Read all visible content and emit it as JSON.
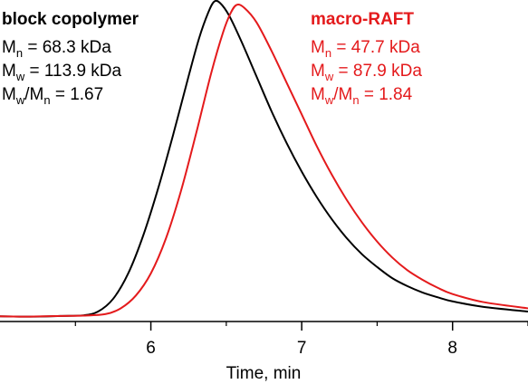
{
  "chart_data": {
    "type": "line",
    "title": "",
    "xlabel": "Time, min",
    "ylabel": "",
    "xlim": [
      5.0,
      8.5
    ],
    "ylim": [
      0,
      1
    ],
    "x_ticks": [
      6,
      7,
      8
    ],
    "grid": false,
    "series": [
      {
        "name": "block copolymer",
        "color": "#000000",
        "points": [
          [
            5.0,
            0.005
          ],
          [
            5.2,
            0.004
          ],
          [
            5.4,
            0.006
          ],
          [
            5.55,
            0.008
          ],
          [
            5.65,
            0.02
          ],
          [
            5.75,
            0.06
          ],
          [
            5.85,
            0.14
          ],
          [
            5.95,
            0.26
          ],
          [
            6.05,
            0.41
          ],
          [
            6.15,
            0.58
          ],
          [
            6.25,
            0.76
          ],
          [
            6.32,
            0.88
          ],
          [
            6.38,
            0.96
          ],
          [
            6.42,
            0.995
          ],
          [
            6.46,
            0.99
          ],
          [
            6.52,
            0.95
          ],
          [
            6.6,
            0.87
          ],
          [
            6.7,
            0.76
          ],
          [
            6.8,
            0.65
          ],
          [
            6.9,
            0.55
          ],
          [
            7.0,
            0.46
          ],
          [
            7.1,
            0.38
          ],
          [
            7.2,
            0.31
          ],
          [
            7.3,
            0.25
          ],
          [
            7.4,
            0.2
          ],
          [
            7.5,
            0.16
          ],
          [
            7.6,
            0.125
          ],
          [
            7.7,
            0.1
          ],
          [
            7.8,
            0.08
          ],
          [
            7.9,
            0.065
          ],
          [
            8.0,
            0.052
          ],
          [
            8.2,
            0.035
          ],
          [
            8.5,
            0.02
          ]
        ]
      },
      {
        "name": "macro-RAFT",
        "color": "#e41a1c",
        "points": [
          [
            5.0,
            0.005
          ],
          [
            5.2,
            0.004
          ],
          [
            5.4,
            0.006
          ],
          [
            5.55,
            0.007
          ],
          [
            5.7,
            0.012
          ],
          [
            5.8,
            0.03
          ],
          [
            5.9,
            0.07
          ],
          [
            6.0,
            0.14
          ],
          [
            6.1,
            0.25
          ],
          [
            6.2,
            0.4
          ],
          [
            6.3,
            0.58
          ],
          [
            6.4,
            0.77
          ],
          [
            6.48,
            0.9
          ],
          [
            6.53,
            0.96
          ],
          [
            6.57,
            0.985
          ],
          [
            6.62,
            0.975
          ],
          [
            6.7,
            0.93
          ],
          [
            6.8,
            0.84
          ],
          [
            6.9,
            0.74
          ],
          [
            7.0,
            0.64
          ],
          [
            7.1,
            0.54
          ],
          [
            7.2,
            0.45
          ],
          [
            7.3,
            0.37
          ],
          [
            7.4,
            0.3
          ],
          [
            7.5,
            0.24
          ],
          [
            7.6,
            0.19
          ],
          [
            7.7,
            0.15
          ],
          [
            7.8,
            0.12
          ],
          [
            7.9,
            0.095
          ],
          [
            8.0,
            0.075
          ],
          [
            8.2,
            0.05
          ],
          [
            8.5,
            0.03
          ]
        ]
      }
    ],
    "annotations": {
      "left": {
        "color": "#000000",
        "header": "block copolymer",
        "mn_label": "M",
        "mn_sub": "n",
        "mn_value": " = 68.3 kDa",
        "mw_label": "M",
        "mw_sub": "w",
        "mw_value": " = 113.9 kDa",
        "pdi_a": "M",
        "pdi_a_sub": "w",
        "pdi_b": "/M",
        "pdi_b_sub": "n",
        "pdi_value": " = 1.67"
      },
      "right": {
        "color": "#e41a1c",
        "header": "macro-RAFT",
        "mn_label": "M",
        "mn_sub": "n",
        "mn_value": " = 47.7 kDa",
        "mw_label": "M",
        "mw_sub": "w",
        "mw_value": " = 87.9 kDa",
        "pdi_a": "M",
        "pdi_a_sub": "w",
        "pdi_b": "/M",
        "pdi_b_sub": "n",
        "pdi_value": " = 1.84"
      }
    }
  }
}
